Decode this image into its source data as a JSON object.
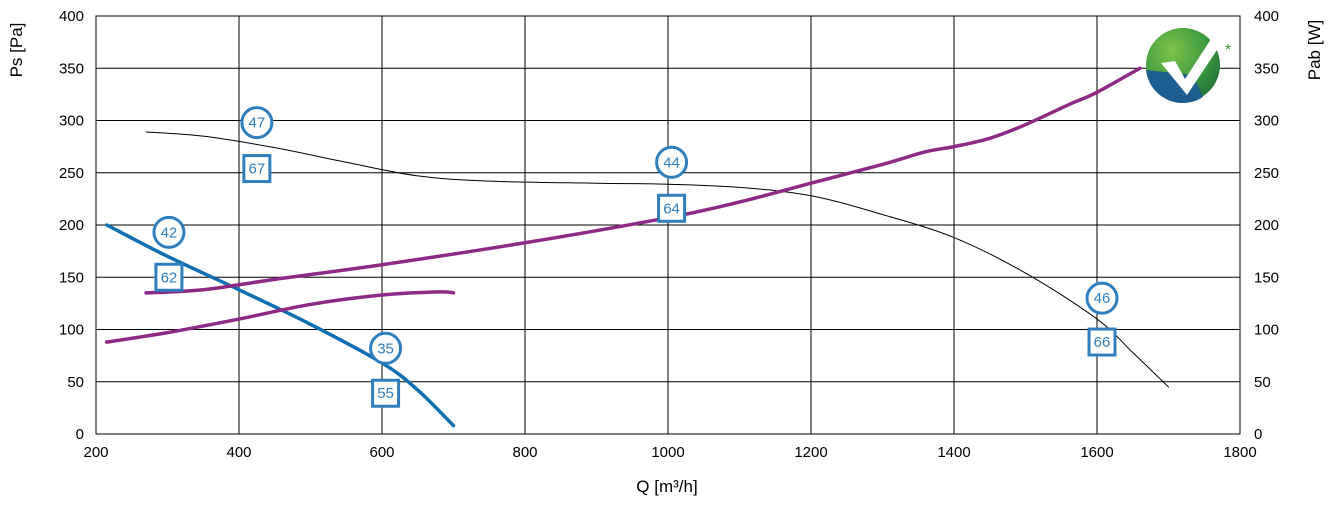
{
  "chart_data": {
    "type": "line",
    "xlabel": "Q [m³/h]",
    "ylabel_left": "Ps [Pa]",
    "ylabel_right": "Pab [W]",
    "xlim": [
      200,
      1800
    ],
    "ylim": [
      0,
      400
    ],
    "y2lim": [
      0,
      400
    ],
    "x_ticks": [
      "200",
      "400",
      "600",
      "800",
      "1000",
      "1200",
      "1400",
      "1600",
      "1800"
    ],
    "y_ticks": [
      "0",
      "50",
      "100",
      "150",
      "200",
      "250",
      "300",
      "350",
      "400"
    ],
    "y2_ticks": [
      "0",
      "50",
      "100",
      "150",
      "200",
      "250",
      "300",
      "350",
      "400"
    ],
    "grid": true,
    "series": [
      {
        "color": "#0e6eb3",
        "axis": "left",
        "style": "thick",
        "points": [
          [
            215,
            200
          ],
          [
            300,
            170
          ],
          [
            400,
            138
          ],
          [
            500,
            105
          ],
          [
            600,
            68
          ],
          [
            650,
            42
          ],
          [
            700,
            8
          ]
        ]
      },
      {
        "color": "#000000",
        "axis": "left",
        "style": "thin",
        "points": [
          [
            270,
            289
          ],
          [
            350,
            285
          ],
          [
            450,
            274
          ],
          [
            550,
            260
          ],
          [
            650,
            247
          ],
          [
            750,
            242
          ],
          [
            900,
            240
          ],
          [
            1000,
            239
          ],
          [
            1100,
            236
          ],
          [
            1200,
            228
          ],
          [
            1300,
            210
          ],
          [
            1400,
            188
          ],
          [
            1500,
            154
          ],
          [
            1600,
            110
          ],
          [
            1650,
            78
          ],
          [
            1700,
            45
          ]
        ]
      },
      {
        "color": "#8e2a86",
        "axis": "right",
        "style": "thick",
        "points": [
          [
            270,
            135
          ],
          [
            350,
            138
          ],
          [
            450,
            148
          ],
          [
            600,
            162
          ],
          [
            800,
            183
          ],
          [
            1000,
            207
          ],
          [
            1100,
            222
          ],
          [
            1200,
            240
          ],
          [
            1300,
            258
          ],
          [
            1360,
            270
          ],
          [
            1400,
            275
          ],
          [
            1450,
            283
          ],
          [
            1500,
            296
          ],
          [
            1560,
            315
          ],
          [
            1600,
            327
          ],
          [
            1660,
            350
          ]
        ]
      },
      {
        "color": "#8e2a86",
        "axis": "right",
        "style": "thick",
        "points": [
          [
            215,
            88
          ],
          [
            300,
            97
          ],
          [
            400,
            110
          ],
          [
            500,
            124
          ],
          [
            600,
            133
          ],
          [
            680,
            136
          ],
          [
            700,
            135
          ]
        ]
      }
    ],
    "annotations": [
      {
        "shape": "circle",
        "label": "47",
        "x": 425,
        "y": 298
      },
      {
        "shape": "square",
        "label": "67",
        "x": 425,
        "y": 254
      },
      {
        "shape": "circle",
        "label": "42",
        "x": 302,
        "y": 193
      },
      {
        "shape": "square",
        "label": "62",
        "x": 302,
        "y": 150
      },
      {
        "shape": "circle",
        "label": "35",
        "x": 605,
        "y": 82
      },
      {
        "shape": "square",
        "label": "55",
        "x": 605,
        "y": 39
      },
      {
        "shape": "circle",
        "label": "44",
        "x": 1005,
        "y": 260
      },
      {
        "shape": "square",
        "label": "64",
        "x": 1005,
        "y": 216
      },
      {
        "shape": "circle",
        "label": "46",
        "x": 1607,
        "y": 130
      },
      {
        "shape": "square",
        "label": "66",
        "x": 1607,
        "y": 88
      }
    ],
    "logo": {
      "name": "checkmark-logo-icon",
      "mark": "*"
    }
  }
}
